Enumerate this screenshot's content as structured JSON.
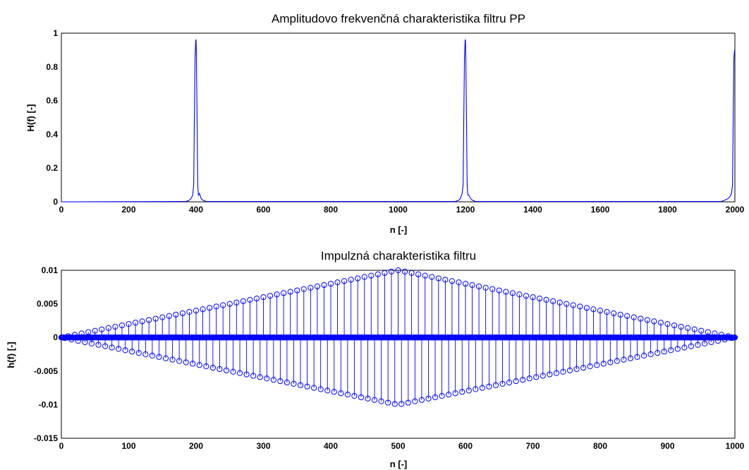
{
  "chart_data": [
    {
      "type": "line",
      "title": "Amplitudovo frekvenčná charakteristika filtru PP",
      "xlabel": "n [-]",
      "ylabel": "H(f) [-]",
      "xlim": [
        0,
        2000
      ],
      "ylim": [
        0,
        1
      ],
      "xticks": [
        "0",
        "200",
        "400",
        "600",
        "800",
        "1000",
        "1200",
        "1400",
        "1600",
        "1800",
        "2000"
      ],
      "yticks": [
        "0",
        "0.2",
        "0.4",
        "0.6",
        "0.8",
        "1"
      ],
      "grid": false,
      "series": [
        {
          "color": "#0000ff",
          "x": [
            0,
            370,
            380,
            385,
            390,
            393,
            395,
            397,
            399,
            400,
            401,
            403,
            405,
            407,
            410,
            415,
            420,
            430,
            1170,
            1180,
            1185,
            1190,
            1193,
            1195,
            1197,
            1199,
            1200,
            1201,
            1203,
            1205,
            1207,
            1210,
            1215,
            1220,
            1230,
            1960,
            1970,
            1980,
            1985,
            1990,
            1993,
            1995,
            1997,
            1999,
            2000
          ],
          "y": [
            0,
            0.002,
            0.01,
            0.02,
            0.04,
            0.1,
            0.5,
            0.85,
            0.96,
            0.96,
            0.85,
            0.5,
            0.1,
            0.04,
            0.05,
            0.02,
            0.01,
            0.002,
            0.002,
            0.01,
            0.02,
            0.05,
            0.1,
            0.5,
            0.85,
            0.96,
            0.96,
            0.85,
            0.5,
            0.1,
            0.04,
            0.04,
            0.02,
            0.01,
            0.002,
            0.002,
            0.01,
            0.02,
            0.03,
            0.05,
            0.1,
            0.5,
            0.85,
            0.9,
            0.88
          ]
        }
      ]
    },
    {
      "type": "stem",
      "title": "Impulzná charakteristika filtru",
      "xlabel": "n [-]",
      "ylabel": "h(f) [-]",
      "xlim": [
        0,
        1000
      ],
      "ylim": [
        -0.015,
        0.01
      ],
      "xticks": [
        "0",
        "100",
        "200",
        "300",
        "400",
        "500",
        "600",
        "700",
        "800",
        "900",
        "1000"
      ],
      "yticks": [
        "-0.015",
        "-0.01",
        "-0.005",
        "0",
        "0.005",
        "0.01"
      ],
      "grid": false,
      "n_points": 1001,
      "oscillation_period": 10,
      "envelope": "triangular",
      "envelope_peak": 0.01,
      "envelope_peak_at": 500,
      "color": "#0000ff"
    }
  ]
}
